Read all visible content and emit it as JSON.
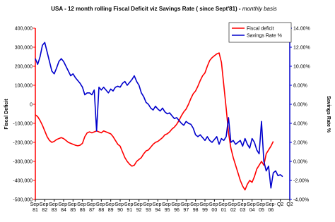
{
  "chart_data": {
    "type": "line",
    "title": "USA - 12 month rolling Fiscal Deficit viz Savings Rate ( since Sept'81) -",
    "subtitle": "monthly basis",
    "y_label": "Fiscal Deficit",
    "y2_label": "Savings Rate %",
    "legend": "top-right",
    "categories": [
      [
        "Sep-",
        "81"
      ],
      null,
      null,
      null,
      [
        "Sep-",
        "82"
      ],
      null,
      null,
      null,
      [
        "Sep-",
        "83"
      ],
      null,
      null,
      null,
      [
        "Sep-",
        "84"
      ],
      null,
      null,
      null,
      [
        "Sep-",
        "85"
      ],
      null,
      null,
      null,
      [
        "Sep-",
        "86"
      ],
      null,
      null,
      null,
      [
        "Sep-",
        "87"
      ],
      null,
      null,
      null,
      [
        "Sep-",
        "88"
      ],
      null,
      null,
      null,
      [
        "Sep-",
        "89"
      ],
      null,
      null,
      null,
      [
        "Sep-",
        "90"
      ],
      null,
      null,
      null,
      [
        "Sep-",
        "91"
      ],
      null,
      null,
      null,
      [
        "Sep-",
        "92"
      ],
      null,
      null,
      null,
      [
        "Sep-",
        "93"
      ],
      null,
      null,
      null,
      [
        "Sep-",
        "94"
      ],
      null,
      null,
      null,
      [
        "Sep-",
        "95"
      ],
      null,
      null,
      null,
      [
        "Sep-",
        "96"
      ],
      null,
      null,
      null,
      [
        "Sep-",
        "97"
      ],
      null,
      null,
      null,
      [
        "Sep-",
        "98"
      ],
      null,
      null,
      null,
      [
        "Sep-",
        "99"
      ],
      null,
      null,
      null,
      [
        "Sep-",
        "00"
      ],
      null,
      null,
      null,
      [
        "Sep-",
        "01"
      ],
      null,
      null,
      null,
      [
        "Sep-",
        "02"
      ],
      null,
      null,
      null,
      [
        "Sep-",
        "03"
      ],
      null,
      null,
      null,
      [
        "Sep-",
        "04"
      ],
      null,
      null,
      null,
      [
        "Sep-",
        "05"
      ],
      null,
      null,
      null,
      [
        "Sep-",
        "06"
      ],
      null,
      null,
      null,
      [
        "Q2"
      ],
      null,
      null,
      null,
      [
        "Q2"
      ]
    ],
    "series": [
      {
        "name": "Fiscal deficit",
        "color": "#ff0000",
        "axis": "y",
        "values": [
          -55000,
          -65000,
          -85000,
          -110000,
          -140000,
          -170000,
          -190000,
          -200000,
          -195000,
          -185000,
          -180000,
          -175000,
          -180000,
          -190000,
          -200000,
          -205000,
          -210000,
          -215000,
          -218000,
          -215000,
          -205000,
          -170000,
          -150000,
          -145000,
          -150000,
          -145000,
          -140000,
          -145000,
          -150000,
          -140000,
          -145000,
          -150000,
          -155000,
          -170000,
          -190000,
          -210000,
          -220000,
          -250000,
          -280000,
          -300000,
          -315000,
          -325000,
          -320000,
          -300000,
          -290000,
          -280000,
          -260000,
          -245000,
          -240000,
          -225000,
          -210000,
          -200000,
          -195000,
          -185000,
          -175000,
          -160000,
          -155000,
          -145000,
          -130000,
          -120000,
          -105000,
          -85000,
          -60000,
          -40000,
          -25000,
          0,
          30000,
          55000,
          70000,
          95000,
          125000,
          150000,
          165000,
          200000,
          230000,
          245000,
          255000,
          265000,
          270000,
          220000,
          100000,
          -20000,
          -150000,
          -230000,
          -280000,
          -320000,
          -360000,
          -400000,
          -430000,
          -450000,
          -420000,
          -400000,
          -410000,
          -380000,
          -340000,
          -320000,
          -300000,
          -320000,
          -260000,
          -240000,
          -220000,
          -195000,
          null,
          null,
          null,
          null,
          null,
          null,
          null
        ]
      },
      {
        "name": "Savings Rate %",
        "color": "#0000cc",
        "axis": "y2",
        "values": [
          10.8,
          10.2,
          11.0,
          12.2,
          12.5,
          11.5,
          10.5,
          9.5,
          9.2,
          9.8,
          10.5,
          10.8,
          10.5,
          10.0,
          9.5,
          9.0,
          9.2,
          8.8,
          8.5,
          8.2,
          7.8,
          7.0,
          7.2,
          7.2,
          7.0,
          7.5,
          3.2,
          7.8,
          7.5,
          7.8,
          7.5,
          7.2,
          7.6,
          7.4,
          7.8,
          7.9,
          7.8,
          8.2,
          8.4,
          8.0,
          8.3,
          8.6,
          9.0,
          8.4,
          8.0,
          7.2,
          6.8,
          6.2,
          6.0,
          5.6,
          5.4,
          5.8,
          5.5,
          5.3,
          5.6,
          5.2,
          5.0,
          5.1,
          4.8,
          4.5,
          4.6,
          4.3,
          4.0,
          3.8,
          4.2,
          4.0,
          3.9,
          3.5,
          2.8,
          2.6,
          2.8,
          2.5,
          2.2,
          2.6,
          2.2,
          2.0,
          2.3,
          2.6,
          1.8,
          2.4,
          2.2,
          2.6,
          4.6,
          2.0,
          2.2,
          1.8,
          2.0,
          2.2,
          1.6,
          2.4,
          1.8,
          1.4,
          2.4,
          2.0,
          1.2,
          0.8,
          4.2,
          0.0,
          -1.0,
          -0.5,
          -2.8,
          -1.2,
          -1.0,
          -1.5,
          -1.4,
          -1.6,
          null,
          null,
          null
        ]
      }
    ],
    "ylim": [
      -500000,
      400000
    ],
    "yticks": [
      {
        "value": -500000,
        "label": "-500,000"
      },
      {
        "value": -400000,
        "label": "-400,000"
      },
      {
        "value": -300000,
        "label": "-300,000"
      },
      {
        "value": -200000,
        "label": "-200,000"
      },
      {
        "value": -100000,
        "label": "-100,000"
      },
      0,
      {
        "value": 100000,
        "label": "100,000"
      },
      {
        "value": 200000,
        "label": "200,000"
      },
      {
        "value": 300000,
        "label": "300,000"
      },
      {
        "value": 400000,
        "label": "400,000"
      }
    ],
    "y2lim": [
      -4,
      14
    ],
    "y2ticks": [
      {
        "value": -4,
        "label": "-4.00%"
      },
      {
        "value": -2,
        "label": "-2.00%"
      },
      {
        "value": 0,
        "label": "0.00%"
      },
      {
        "value": 2,
        "label": "2.00%"
      },
      {
        "value": 4,
        "label": "4.00%"
      },
      {
        "value": 6,
        "label": "6.00%"
      },
      {
        "value": 8,
        "label": "8.00%"
      },
      {
        "value": 10,
        "label": "10.00%"
      },
      {
        "value": 12,
        "label": "12.00%"
      },
      {
        "value": 14,
        "label": "14.00%"
      }
    ],
    "grid": false
  }
}
